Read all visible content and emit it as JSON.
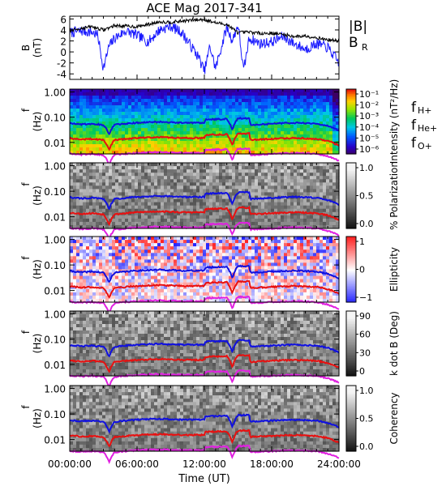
{
  "title": "ACE Mag 2017-341",
  "xlabel": "Time (UT)",
  "x_ticks": [
    "00:00:00",
    "06:00:00",
    "12:00:00",
    "18:00:00",
    "24:00:00"
  ],
  "colors": {
    "B_mag": "#000000",
    "B_R": "#1a1aff",
    "f_H": "#1010e0",
    "f_He": "#e81010",
    "f_O": "#e020e0",
    "legend_H": "#3030c8",
    "legend_He": "#d01010",
    "legend_O": "#d020d0"
  },
  "panel1": {
    "ylabel_top": "B",
    "ylabel_bottom": "(nT)",
    "ticks": [
      "6",
      "4",
      "2",
      "0",
      "-2",
      "-4"
    ],
    "legend_mag": "|B|",
    "legend_r": "B",
    "legend_r_sub": "R"
  },
  "freq_ticks": [
    "1.00",
    "0.10",
    "0.01"
  ],
  "freq_label_top": "f",
  "freq_label_bottom": "(Hz)",
  "ion_legend": {
    "H": {
      "base": "f",
      "sub": "H+"
    },
    "He": {
      "base": "f",
      "sub": "He+"
    },
    "O": {
      "base": "f",
      "sub": "O+"
    }
  },
  "colorbars": [
    {
      "label": "Intensity (nT²/Hz)",
      "ticks": [
        "10⁻¹",
        "10⁻²",
        "10⁻³",
        "10⁻⁴",
        "10⁻⁵",
        "10⁻⁶"
      ],
      "scheme": "rainbow"
    },
    {
      "label": "% Polarization",
      "ticks": [
        "1.0",
        "0.5",
        "0.0"
      ],
      "scheme": "gray"
    },
    {
      "label": "Ellipticity",
      "ticks": [
        "1",
        "0",
        "−1"
      ],
      "scheme": "bwr"
    },
    {
      "label": "k dot B (Deg)",
      "ticks": [
        "90",
        "60",
        "30",
        "0"
      ],
      "scheme": "gray"
    },
    {
      "label": "Coherency",
      "ticks": [
        "1.0",
        "0.5",
        "0.0"
      ],
      "scheme": "gray"
    }
  ],
  "chart_data": {
    "type": "line",
    "x_range_hours": [
      0,
      24
    ],
    "panel1_ylim": [
      -5,
      6.5
    ],
    "freq_ylim_hz": [
      0.0035,
      1.3
    ],
    "log_freq_axis": true,
    "series": [
      {
        "name": "|B|",
        "x": [
          0,
          1,
          2,
          3,
          4,
          5,
          6,
          7,
          8,
          9,
          10,
          11,
          12,
          13,
          14,
          15,
          16,
          17,
          18,
          19,
          20,
          21,
          22,
          23,
          24
        ],
        "values": [
          3.8,
          4.3,
          4.6,
          4.0,
          4.8,
          4.7,
          4.6,
          5.0,
          5.5,
          5.4,
          5.6,
          5.8,
          5.9,
          5.3,
          5.0,
          3.5,
          3.6,
          3.4,
          3.4,
          3.2,
          2.8,
          2.9,
          2.6,
          2.2,
          2.0
        ]
      },
      {
        "name": "B_R",
        "x": [
          0,
          1,
          2,
          2.5,
          3,
          3.5,
          4,
          5,
          6,
          7,
          8,
          9,
          10,
          11,
          11.5,
          12,
          12.5,
          13,
          14,
          14.5,
          15,
          15.5,
          16,
          17,
          18,
          19,
          20,
          21,
          22,
          23,
          24
        ],
        "values": [
          3.5,
          3.8,
          3.6,
          3.0,
          -3.0,
          1.0,
          2.5,
          3.8,
          3.0,
          1.8,
          4.0,
          4.7,
          3.5,
          0.5,
          -1.0,
          -3.5,
          1.0,
          -3.0,
          4.5,
          2.0,
          5.0,
          -3.5,
          2.5,
          1.5,
          1.8,
          2.8,
          1.5,
          0.5,
          1.5,
          0.8,
          -2.0
        ]
      },
      {
        "name": "fH+",
        "x": [
          0,
          1,
          2,
          3,
          3.5,
          4,
          6,
          8,
          10,
          12,
          12.1,
          14,
          14.5,
          15,
          16,
          16.1,
          18,
          20,
          22,
          23,
          24
        ],
        "values": [
          0.058,
          0.052,
          0.055,
          0.05,
          0.02,
          0.05,
          0.06,
          0.065,
          0.06,
          0.06,
          0.08,
          0.085,
          0.03,
          0.09,
          0.09,
          0.05,
          0.055,
          0.06,
          0.055,
          0.045,
          0.03
        ]
      },
      {
        "name": "fHe+",
        "x": [
          0,
          1,
          2,
          3,
          3.5,
          4,
          6,
          8,
          10,
          12,
          12.1,
          14,
          14.5,
          15,
          16,
          16.1,
          18,
          20,
          22,
          23,
          24
        ],
        "values": [
          0.0145,
          0.013,
          0.0138,
          0.0125,
          0.005,
          0.0125,
          0.015,
          0.0163,
          0.015,
          0.015,
          0.02,
          0.021,
          0.0075,
          0.0225,
          0.0225,
          0.0125,
          0.0138,
          0.015,
          0.0138,
          0.0113,
          0.0075
        ]
      },
      {
        "name": "fO+",
        "x": [
          0,
          1,
          2,
          3,
          3.5,
          4,
          6,
          8,
          10,
          12,
          12.1,
          14,
          14.5,
          15,
          16,
          16.1,
          18,
          20,
          22,
          23,
          24
        ],
        "values": [
          0.0036,
          0.0033,
          0.0035,
          0.0032,
          0.0013,
          0.0032,
          0.0038,
          0.0041,
          0.0038,
          0.0038,
          0.005,
          0.0053,
          0.0019,
          0.0056,
          0.0056,
          0.0032,
          0.0035,
          0.0038,
          0.0035,
          0.0028,
          0.0019
        ]
      }
    ]
  }
}
